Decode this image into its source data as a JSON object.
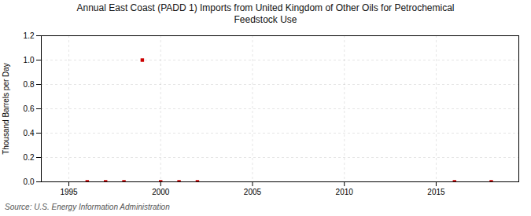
{
  "chart_data": {
    "type": "scatter",
    "title": "Annual East Coast (PADD 1) Imports from United Kingdom of Other Oils for Petrochemical\nFeedstock Use",
    "ylabel": "Thousand Barrels per Day",
    "annotations": [
      "Source: U.S. Energy Information Administration"
    ],
    "x": [
      1996,
      1997,
      1998,
      1999,
      2000,
      2001,
      2002,
      2016,
      2018
    ],
    "values": [
      0.0,
      0.0,
      0.0,
      1.0,
      0.0,
      0.0,
      0.0,
      0.0,
      0.0
    ],
    "color": "#cc0000",
    "marker": "square",
    "xlim": [
      1993.5,
      2019.5
    ],
    "ylim": [
      0.0,
      1.2
    ],
    "xticks": [
      1995,
      2000,
      2005,
      2010,
      2015
    ],
    "yticks": [
      {
        "value": 0.0,
        "label": "0.0"
      },
      0.2,
      0.4,
      0.6,
      0.8,
      {
        "value": 1.0,
        "label": "1.0"
      },
      1.2
    ],
    "grid": true
  }
}
